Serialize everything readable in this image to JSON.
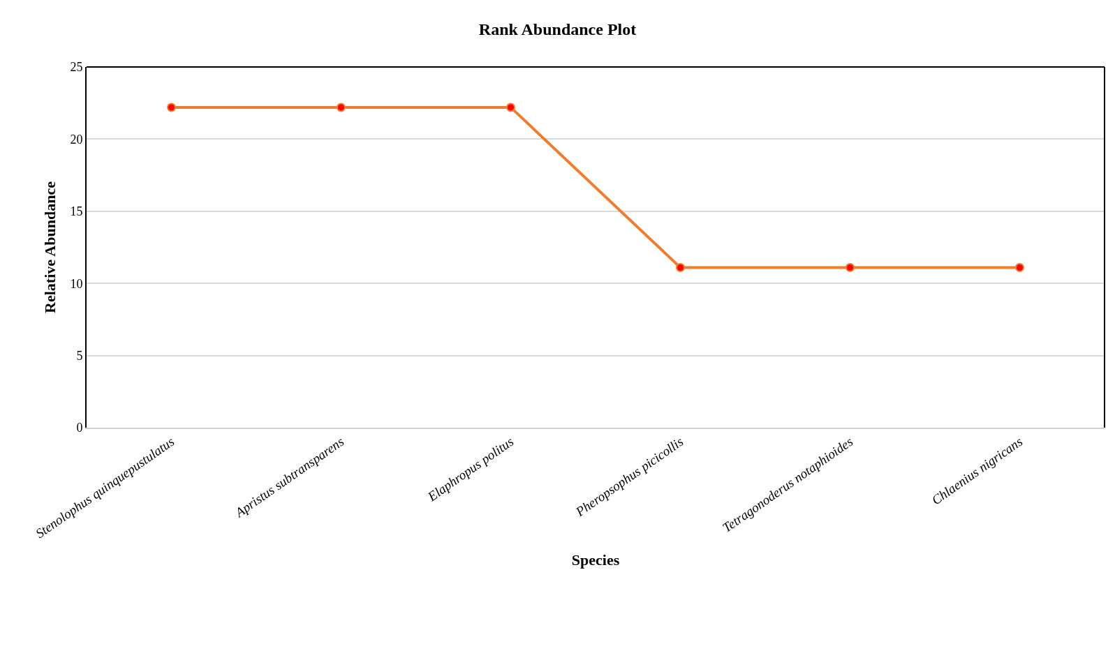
{
  "chart_data": {
    "type": "line",
    "title": "Rank Abundance Plot",
    "xlabel": "Species",
    "ylabel": "Relative Abundance",
    "categories": [
      "Stenolophus quinquepustulatus",
      "Apristus subtransparens",
      "Elaphropus politus",
      "Pheropsophus picicollis",
      "Tetragonoderus notaphioides",
      "Chlaenius nigricans"
    ],
    "series": [
      {
        "color": "#ed7d31",
        "values": [
          22.2,
          22.2,
          22.2,
          11.1,
          11.1,
          11.1
        ]
      }
    ],
    "ylim": [
      0,
      25
    ],
    "yticks": [
      0,
      5,
      10,
      15,
      20,
      25
    ],
    "grid": "y",
    "marker": "circle",
    "line_style": "solid"
  }
}
